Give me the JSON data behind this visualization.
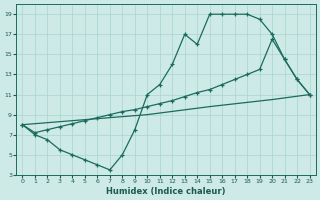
{
  "xlabel": "Humidex (Indice chaleur)",
  "bg_color": "#ceeae6",
  "grid_color": "#aad4ce",
  "line_color": "#1a6b5e",
  "xlim": [
    -0.5,
    23.5
  ],
  "ylim": [
    3,
    20
  ],
  "xticks": [
    0,
    1,
    2,
    3,
    4,
    5,
    6,
    7,
    8,
    9,
    10,
    11,
    12,
    13,
    14,
    15,
    16,
    17,
    18,
    19,
    20,
    21,
    22,
    23
  ],
  "yticks": [
    3,
    5,
    7,
    9,
    11,
    13,
    15,
    17,
    19
  ],
  "line1_x": [
    0,
    1,
    2,
    3,
    4,
    5,
    6,
    7,
    8,
    9,
    10,
    11,
    12,
    13,
    14,
    15,
    16,
    17,
    18,
    19,
    20,
    21,
    22,
    23
  ],
  "line1_y": [
    8,
    7,
    6.5,
    5.5,
    5.0,
    4.5,
    4.0,
    3.5,
    5.0,
    7.5,
    11.0,
    12.0,
    14.0,
    17.0,
    16.0,
    19.0,
    19.0,
    19.0,
    19.0,
    18.5,
    17.0,
    14.5,
    12.5,
    11.0
  ],
  "line2_x": [
    0,
    1,
    2,
    3,
    4,
    5,
    6,
    7,
    8,
    9,
    10,
    11,
    12,
    13,
    14,
    15,
    16,
    17,
    18,
    19,
    20,
    21,
    22,
    23
  ],
  "line2_y": [
    8,
    7.2,
    7.5,
    7.8,
    8.1,
    8.4,
    8.7,
    9.0,
    9.3,
    9.5,
    9.8,
    10.1,
    10.4,
    10.8,
    11.2,
    11.5,
    12.0,
    12.5,
    13.0,
    13.5,
    16.5,
    14.5,
    12.5,
    11.0
  ],
  "line3_x": [
    0,
    5,
    10,
    15,
    20,
    23
  ],
  "line3_y": [
    8,
    8.5,
    9.0,
    9.8,
    10.5,
    11.0
  ]
}
